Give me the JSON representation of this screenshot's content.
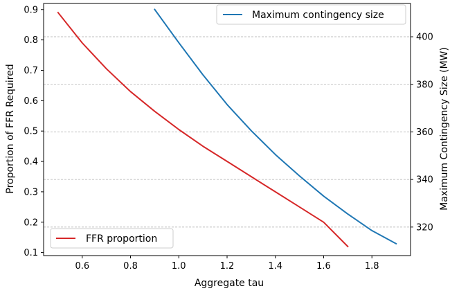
{
  "chart_data": {
    "type": "line",
    "xlabel": "Aggregate tau",
    "ylabel_left": "Proportion of FFR Required",
    "ylabel_right": "Maximum Contingency Size (MW)",
    "xlim": [
      0.44,
      1.96
    ],
    "ylim_left": [
      0.09,
      0.92
    ],
    "ylim_right": [
      308,
      414
    ],
    "x_ticks": [
      "0.6",
      "0.8",
      "1.0",
      "1.2",
      "1.4",
      "1.6",
      "1.8"
    ],
    "y_left_ticks": [
      "0.1",
      "0.2",
      "0.3",
      "0.4",
      "0.5",
      "0.6",
      "0.7",
      "0.8",
      "0.9"
    ],
    "y_right_ticks": [
      "320",
      "340",
      "360",
      "380",
      "400"
    ],
    "grid": "horizontal dashed (right axis)",
    "series": [
      {
        "name": "FFR proportion",
        "axis": "left",
        "color": "#d62728",
        "legend_position": "lower left",
        "x": [
          0.5,
          0.6,
          0.7,
          0.8,
          0.9,
          1.0,
          1.1,
          1.2,
          1.3,
          1.4,
          1.5,
          1.6,
          1.7
        ],
        "y": [
          0.89,
          0.79,
          0.705,
          0.63,
          0.565,
          0.505,
          0.45,
          0.4,
          0.35,
          0.3,
          0.25,
          0.2,
          0.12
        ]
      },
      {
        "name": "Maximum contingency size",
        "axis": "right",
        "color": "#1f77b4",
        "legend_position": "upper right",
        "x": [
          0.9,
          1.0,
          1.1,
          1.2,
          1.3,
          1.4,
          1.5,
          1.6,
          1.7,
          1.8,
          1.9
        ],
        "y": [
          411.5,
          397.5,
          384,
          371.5,
          360.5,
          350.5,
          341.5,
          333,
          325.5,
          318.5,
          313
        ]
      }
    ]
  }
}
